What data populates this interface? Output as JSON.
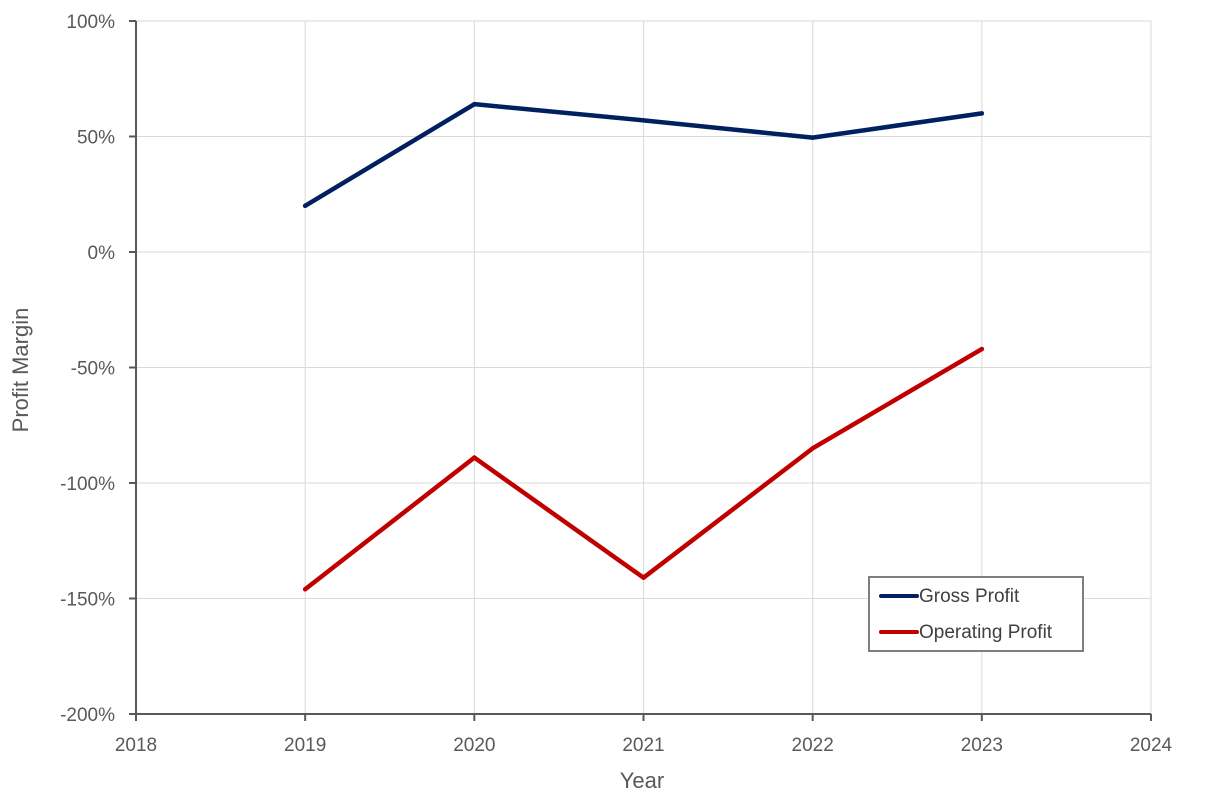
{
  "chart_data": {
    "type": "line",
    "title": "",
    "xlabel": "Year",
    "ylabel": "Profit Margin",
    "x": [
      2019,
      2020,
      2021,
      2022,
      2023
    ],
    "series": [
      {
        "name": "Gross Profit",
        "color": "#002060",
        "values": [
          20,
          64,
          57,
          49.5,
          60
        ]
      },
      {
        "name": "Operating Profit",
        "color": "#C00000",
        "values": [
          -146,
          -89,
          -141,
          -85,
          -42
        ]
      }
    ],
    "xlim": [
      2018,
      2024
    ],
    "ylim": [
      -200,
      100
    ],
    "xticks": [
      2018,
      2019,
      2020,
      2021,
      2022,
      2023,
      2024
    ],
    "xtick_labels": [
      "2018",
      "2019",
      "2020",
      "2021",
      "2022",
      "2023",
      "2024"
    ],
    "yticks": [
      -200,
      -150,
      -100,
      -50,
      0,
      50,
      100
    ],
    "ytick_labels": [
      "-200%",
      "-150%",
      "-100%",
      "-50%",
      "0%",
      "50%",
      "100%"
    ],
    "grid": true,
    "legend_position": "bottom-right"
  }
}
